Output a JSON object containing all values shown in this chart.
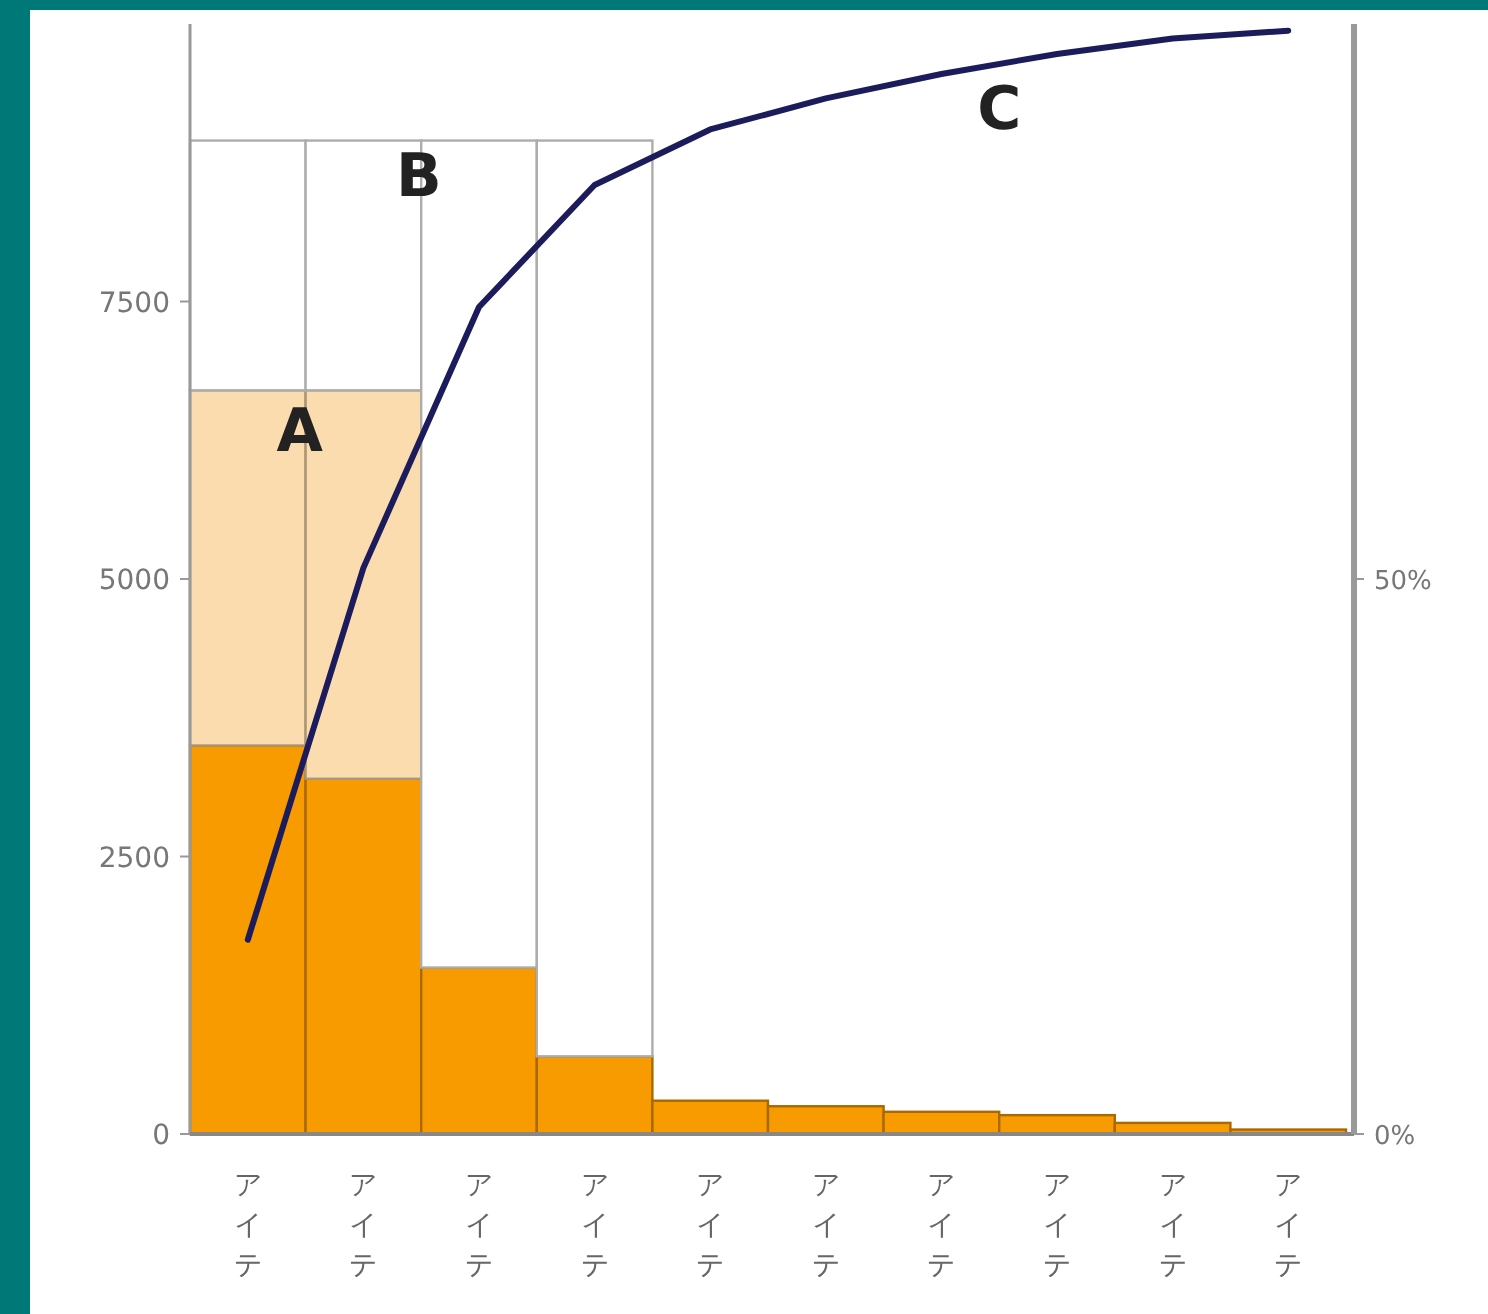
{
  "chart_data": {
    "type": "bar",
    "stacked": true,
    "categories": [
      "アイテ",
      "アイテ",
      "アイテ",
      "アイテ",
      "アイテ",
      "アイテ",
      "アイテ",
      "アイテ",
      "アイテ",
      "アイテ"
    ],
    "series": [
      {
        "values": [
          3500,
          3200,
          1500,
          700,
          300,
          250,
          200,
          170,
          100,
          40
        ],
        "color": "#f79b00"
      },
      {
        "values": [
          3200,
          3500,
          null,
          null,
          null,
          null,
          null,
          null,
          null,
          null
        ],
        "color": "#fbdcae"
      },
      {
        "values": [
          2250,
          2250,
          7450,
          8250,
          null,
          null,
          null,
          null,
          null,
          null
        ],
        "color": "#ffffff"
      },
      {
        "type": "line",
        "axis": "y2",
        "values": [
          17.5,
          51,
          74.5,
          85.5,
          90.5,
          93.3,
          95.5,
          97.3,
          98.7,
          99.4
        ],
        "color": "#1c1c5c"
      }
    ],
    "ylim": [
      0,
      10000
    ],
    "yticks": [
      0,
      2500,
      5000,
      7500
    ],
    "y2lim": [
      0,
      100
    ],
    "y2ticks": [
      {
        "value": 0,
        "label": "0%"
      },
      {
        "value": 50,
        "label": "50%"
      }
    ],
    "annotations": [
      "A",
      "B",
      "C"
    ]
  }
}
